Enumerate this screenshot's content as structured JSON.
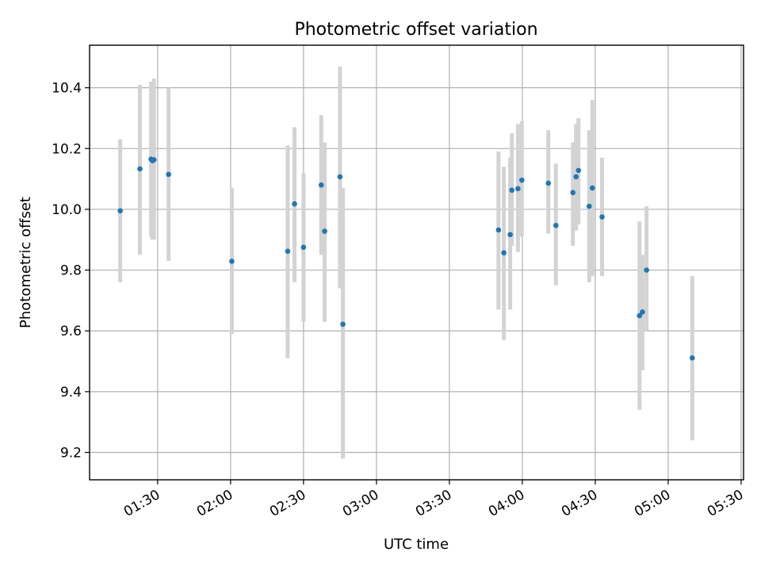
{
  "chart_data": {
    "type": "scatter",
    "title": "Photometric offset variation",
    "xlabel": "UTC time",
    "ylabel": "Photometric offset",
    "grid": true,
    "legend": "none",
    "x_unit": "minutes since 00:00 UTC",
    "xlim": [
      62,
      331
    ],
    "ylim": [
      9.11,
      10.54
    ],
    "x_ticks": [
      {
        "value": 90,
        "label": "01:30"
      },
      {
        "value": 120,
        "label": "02:00"
      },
      {
        "value": 150,
        "label": "02:30"
      },
      {
        "value": 180,
        "label": "03:00"
      },
      {
        "value": 210,
        "label": "03:30"
      },
      {
        "value": 240,
        "label": "04:00"
      },
      {
        "value": 270,
        "label": "04:30"
      },
      {
        "value": 300,
        "label": "05:00"
      },
      {
        "value": 330,
        "label": "05:30"
      }
    ],
    "y_ticks": [
      {
        "value": 9.2,
        "label": "9.2"
      },
      {
        "value": 9.4,
        "label": "9.4"
      },
      {
        "value": 9.6,
        "label": "9.6"
      },
      {
        "value": 9.8,
        "label": "9.8"
      },
      {
        "value": 10.0,
        "label": "10.0"
      },
      {
        "value": 10.2,
        "label": "10.2"
      },
      {
        "value": 10.4,
        "label": "10.4"
      }
    ],
    "point_color": "#1f77b4",
    "errorbar_color": "#d3d3d3",
    "points": [
      {
        "x": 74.6,
        "y": 9.995,
        "lo": 9.76,
        "hi": 10.23
      },
      {
        "x": 82.7,
        "y": 10.133,
        "lo": 9.85,
        "hi": 10.41
      },
      {
        "x": 87.3,
        "y": 10.165,
        "lo": 9.91,
        "hi": 10.42
      },
      {
        "x": 87.9,
        "y": 10.16,
        "lo": 9.9,
        "hi": 10.41
      },
      {
        "x": 88.5,
        "y": 10.163,
        "lo": 9.9,
        "hi": 10.43
      },
      {
        "x": 94.5,
        "y": 10.115,
        "lo": 9.83,
        "hi": 10.4
      },
      {
        "x": 120.5,
        "y": 9.829,
        "lo": 9.59,
        "hi": 10.07
      },
      {
        "x": 143.5,
        "y": 9.862,
        "lo": 9.51,
        "hi": 10.21
      },
      {
        "x": 146.3,
        "y": 10.018,
        "lo": 9.76,
        "hi": 10.27
      },
      {
        "x": 150.0,
        "y": 9.875,
        "lo": 9.63,
        "hi": 10.12
      },
      {
        "x": 157.3,
        "y": 10.08,
        "lo": 9.85,
        "hi": 10.31
      },
      {
        "x": 158.7,
        "y": 9.928,
        "lo": 9.63,
        "hi": 10.22
      },
      {
        "x": 165.0,
        "y": 10.107,
        "lo": 9.74,
        "hi": 10.47
      },
      {
        "x": 166.2,
        "y": 9.622,
        "lo": 9.18,
        "hi": 10.07
      },
      {
        "x": 230.2,
        "y": 9.932,
        "lo": 9.67,
        "hi": 10.19
      },
      {
        "x": 232.4,
        "y": 9.857,
        "lo": 9.57,
        "hi": 10.14
      },
      {
        "x": 235.0,
        "y": 9.917,
        "lo": 9.67,
        "hi": 10.17
      },
      {
        "x": 235.7,
        "y": 10.063,
        "lo": 9.88,
        "hi": 10.25
      },
      {
        "x": 238.2,
        "y": 10.068,
        "lo": 9.86,
        "hi": 10.28
      },
      {
        "x": 239.8,
        "y": 10.096,
        "lo": 9.91,
        "hi": 10.29
      },
      {
        "x": 250.7,
        "y": 10.086,
        "lo": 9.92,
        "hi": 10.26
      },
      {
        "x": 253.8,
        "y": 9.947,
        "lo": 9.75,
        "hi": 10.15
      },
      {
        "x": 260.8,
        "y": 10.055,
        "lo": 9.88,
        "hi": 10.22
      },
      {
        "x": 262.1,
        "y": 10.107,
        "lo": 9.93,
        "hi": 10.28
      },
      {
        "x": 263.1,
        "y": 10.128,
        "lo": 9.95,
        "hi": 10.3
      },
      {
        "x": 267.5,
        "y": 10.01,
        "lo": 9.76,
        "hi": 10.26
      },
      {
        "x": 268.8,
        "y": 10.07,
        "lo": 9.78,
        "hi": 10.36
      },
      {
        "x": 272.8,
        "y": 9.975,
        "lo": 9.78,
        "hi": 10.17
      },
      {
        "x": 288.2,
        "y": 9.65,
        "lo": 9.34,
        "hi": 9.96
      },
      {
        "x": 289.4,
        "y": 9.662,
        "lo": 9.47,
        "hi": 9.85
      },
      {
        "x": 291.1,
        "y": 9.8,
        "lo": 9.6,
        "hi": 10.01
      },
      {
        "x": 309.9,
        "y": 9.511,
        "lo": 9.24,
        "hi": 9.78
      }
    ]
  }
}
